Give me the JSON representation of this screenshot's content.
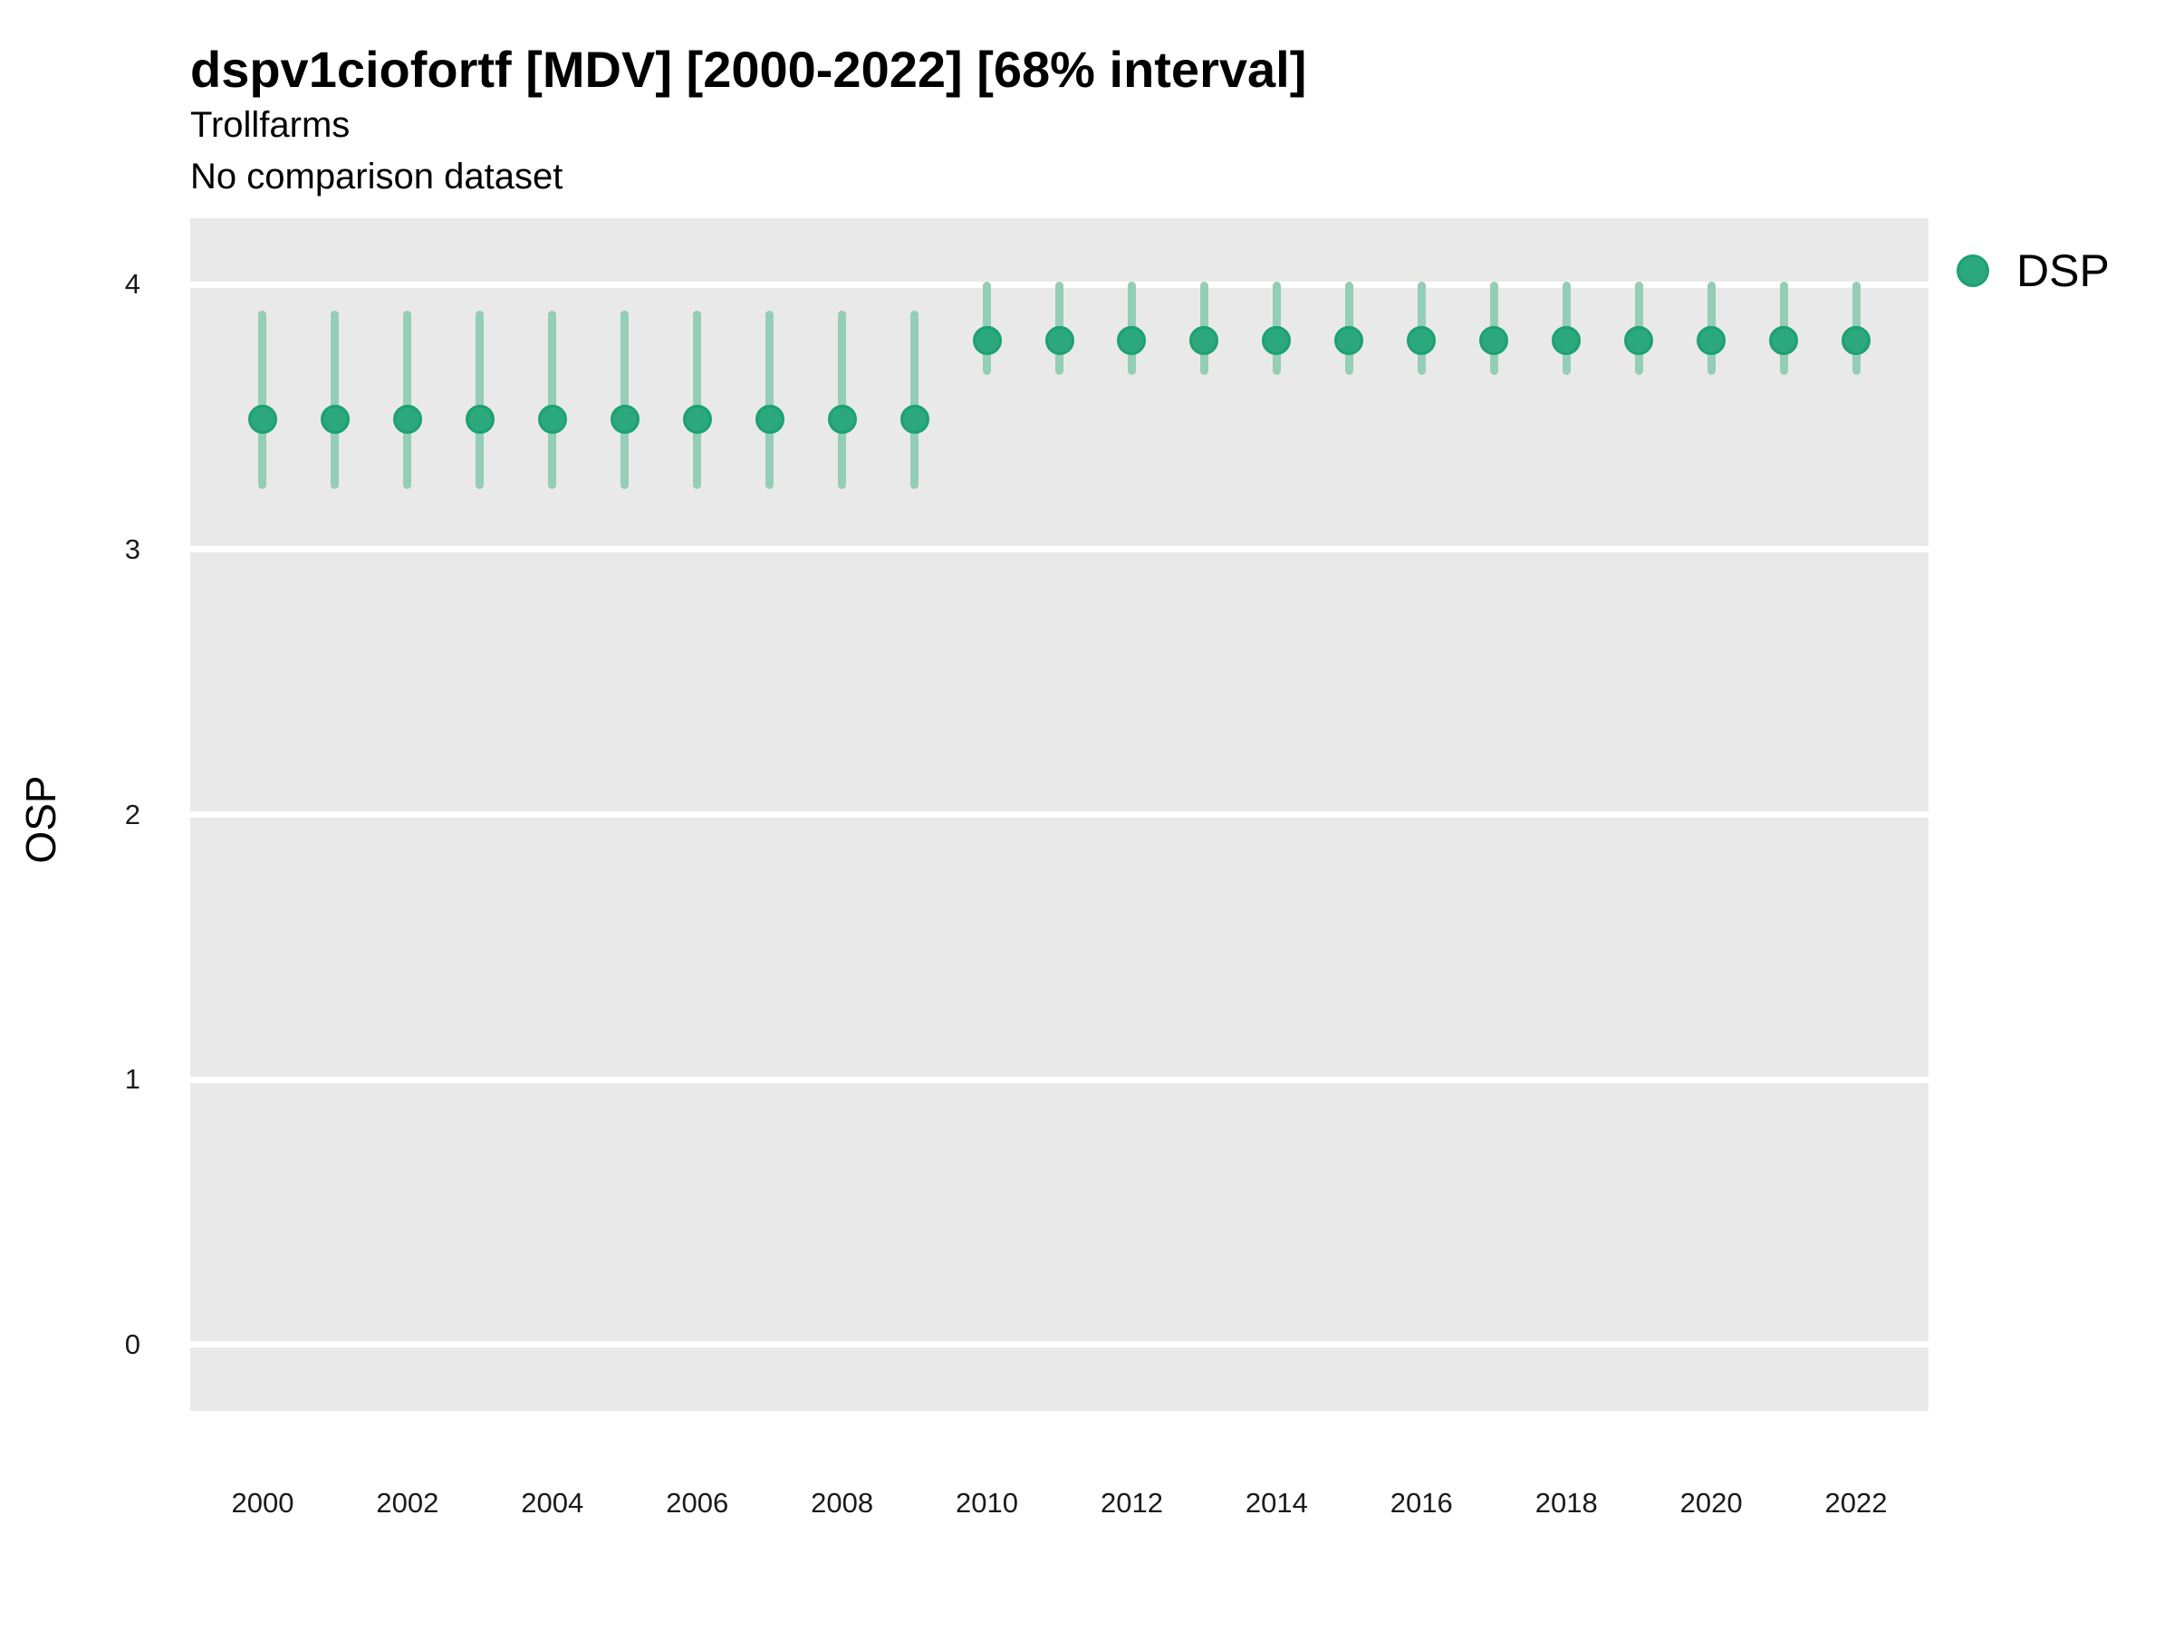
{
  "header": {
    "title": "dspv1ciofortf [MDV] [2000-2022] [68% interval]",
    "subtitle": "Trollfarms",
    "subtitle2": "No comparison dataset"
  },
  "legend": {
    "label": "DSP"
  },
  "axes": {
    "y_title": "OSP"
  },
  "colors": {
    "panel_background": "#e9e9e9",
    "gridline": "#ffffff",
    "point_fill": "#2ba87d",
    "point_border": "#1da171",
    "interval_bar": "#94ceb5",
    "text": "#000000",
    "tick_text": "#1a1a1a"
  },
  "chart_data": {
    "type": "scatter",
    "title": "dspv1ciofortf [MDV] [2000-2022] [68% interval]",
    "subtitle": "Trollfarms",
    "comparison_note": "No comparison dataset",
    "xlabel": "",
    "ylabel": "OSP",
    "interval_label": "68% interval",
    "legend_position": "right",
    "grid": "horizontal-major-only",
    "xlim": [
      1999,
      2023
    ],
    "ylim": [
      -0.25,
      4.25
    ],
    "x_ticks": [
      2000,
      2002,
      2004,
      2006,
      2008,
      2010,
      2012,
      2014,
      2016,
      2018,
      2020,
      2022
    ],
    "y_ticks": [
      0,
      1,
      2,
      3,
      4
    ],
    "series": [
      {
        "name": "DSP",
        "points": [
          {
            "year": 2000,
            "value": 3.49,
            "lo": 3.23,
            "hi": 3.9
          },
          {
            "year": 2001,
            "value": 3.49,
            "lo": 3.23,
            "hi": 3.9
          },
          {
            "year": 2002,
            "value": 3.49,
            "lo": 3.23,
            "hi": 3.9
          },
          {
            "year": 2003,
            "value": 3.49,
            "lo": 3.23,
            "hi": 3.9
          },
          {
            "year": 2004,
            "value": 3.49,
            "lo": 3.23,
            "hi": 3.9
          },
          {
            "year": 2005,
            "value": 3.49,
            "lo": 3.23,
            "hi": 3.9
          },
          {
            "year": 2006,
            "value": 3.49,
            "lo": 3.23,
            "hi": 3.9
          },
          {
            "year": 2007,
            "value": 3.49,
            "lo": 3.23,
            "hi": 3.9
          },
          {
            "year": 2008,
            "value": 3.49,
            "lo": 3.23,
            "hi": 3.9
          },
          {
            "year": 2009,
            "value": 3.49,
            "lo": 3.23,
            "hi": 3.9
          },
          {
            "year": 2010,
            "value": 3.79,
            "lo": 3.66,
            "hi": 4.01
          },
          {
            "year": 2011,
            "value": 3.79,
            "lo": 3.66,
            "hi": 4.01
          },
          {
            "year": 2012,
            "value": 3.79,
            "lo": 3.66,
            "hi": 4.01
          },
          {
            "year": 2013,
            "value": 3.79,
            "lo": 3.66,
            "hi": 4.01
          },
          {
            "year": 2014,
            "value": 3.79,
            "lo": 3.66,
            "hi": 4.01
          },
          {
            "year": 2015,
            "value": 3.79,
            "lo": 3.66,
            "hi": 4.01
          },
          {
            "year": 2016,
            "value": 3.79,
            "lo": 3.66,
            "hi": 4.01
          },
          {
            "year": 2017,
            "value": 3.79,
            "lo": 3.66,
            "hi": 4.01
          },
          {
            "year": 2018,
            "value": 3.79,
            "lo": 3.66,
            "hi": 4.01
          },
          {
            "year": 2019,
            "value": 3.79,
            "lo": 3.66,
            "hi": 4.01
          },
          {
            "year": 2020,
            "value": 3.79,
            "lo": 3.66,
            "hi": 4.01
          },
          {
            "year": 2021,
            "value": 3.79,
            "lo": 3.66,
            "hi": 4.01
          },
          {
            "year": 2022,
            "value": 3.79,
            "lo": 3.66,
            "hi": 4.01
          }
        ]
      }
    ]
  }
}
